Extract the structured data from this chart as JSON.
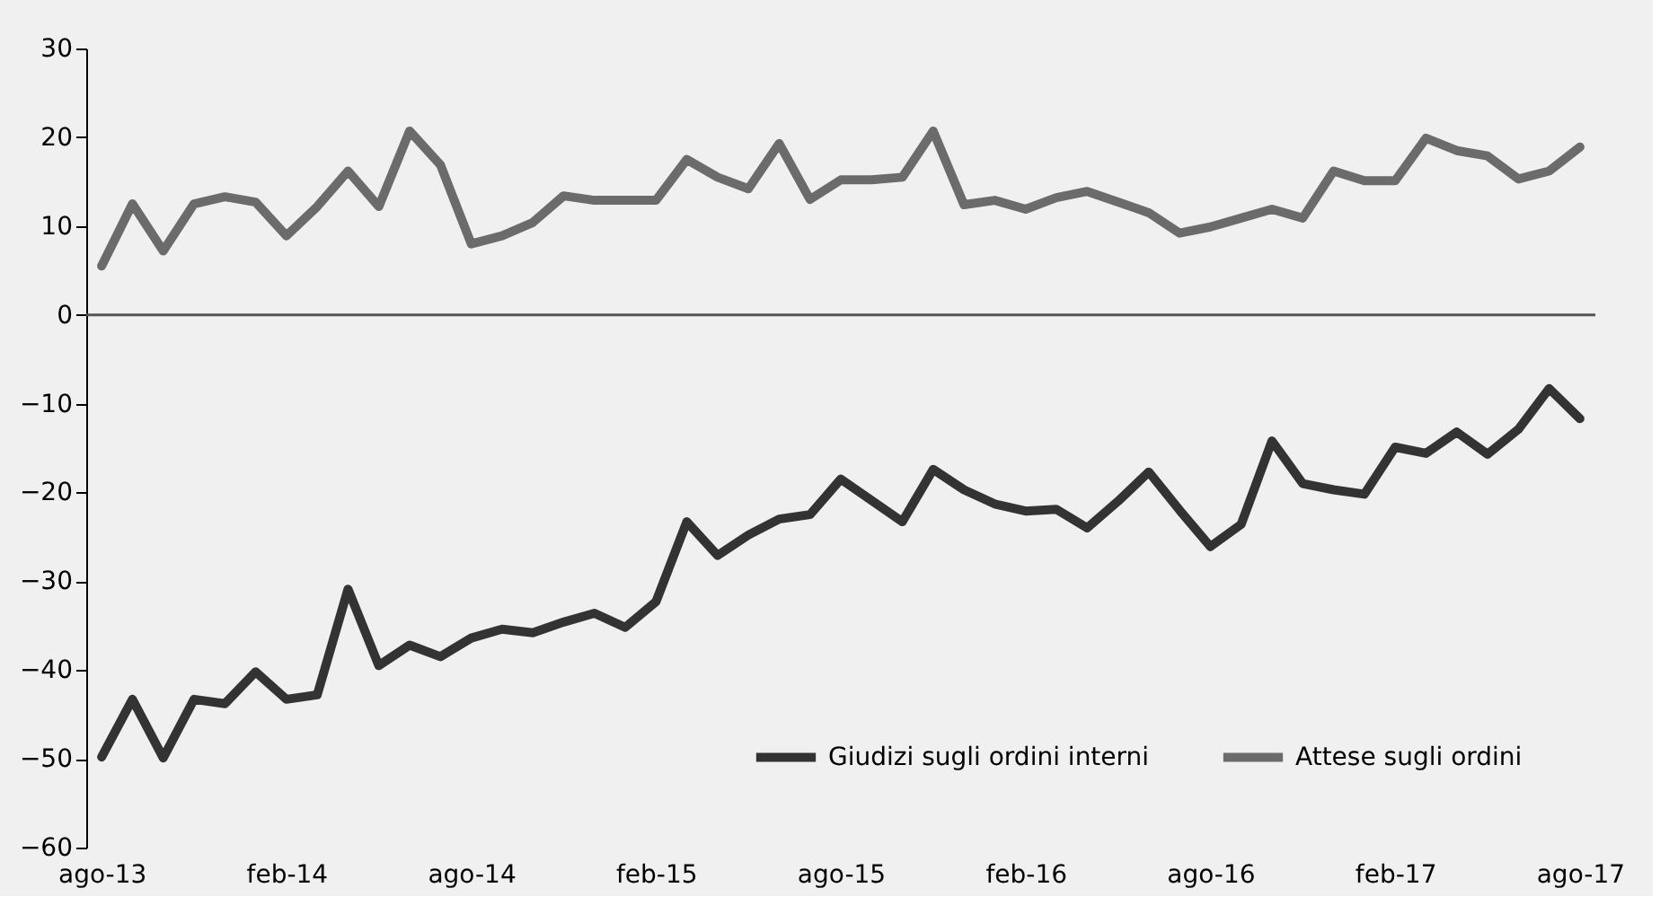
{
  "chart_data": {
    "type": "line",
    "categories": [
      "ago-13",
      null,
      null,
      null,
      null,
      null,
      "feb-14",
      null,
      null,
      null,
      null,
      null,
      "ago-14",
      null,
      null,
      null,
      null,
      null,
      "feb-15",
      null,
      null,
      null,
      null,
      null,
      "ago-15",
      null,
      null,
      null,
      null,
      null,
      "feb-16",
      null,
      null,
      null,
      null,
      null,
      "ago-16",
      null,
      null,
      null,
      null,
      null,
      "feb-17",
      null,
      null,
      null,
      null,
      null,
      "ago-17"
    ],
    "series": [
      {
        "name": "Giudizi sugli ordini interni",
        "color": "#333333",
        "values": [
          -49.8,
          -43.3,
          -49.9,
          -43.3,
          -43.8,
          -40.2,
          -43.3,
          -42.8,
          -30.9,
          -39.5,
          -37.2,
          -38.5,
          -36.4,
          -35.4,
          -35.8,
          -34.6,
          -33.6,
          -35.2,
          -32.3,
          -23.3,
          -27.1,
          -24.8,
          -23.0,
          -22.5,
          -18.5,
          -20.9,
          -23.3,
          -17.4,
          -19.7,
          -21.3,
          -22.1,
          -21.9,
          -24.0,
          -21.0,
          -17.7,
          -22.0,
          -26.1,
          -23.6,
          -14.2,
          -19.0,
          -19.7,
          -20.2,
          -14.9,
          -15.6,
          -13.2,
          -15.7,
          -12.9,
          -8.3,
          -11.7
        ]
      },
      {
        "name": "Attese sugli ordini",
        "color": "#6b6b6b",
        "values": [
          5.5,
          12.5,
          7.2,
          12.5,
          13.3,
          12.7,
          8.9,
          12.2,
          16.2,
          12.2,
          20.7,
          16.9,
          8.0,
          8.9,
          10.4,
          13.4,
          12.9,
          12.9,
          12.9,
          17.5,
          15.5,
          14.2,
          19.3,
          13.0,
          15.2,
          15.2,
          15.5,
          20.7,
          12.4,
          12.9,
          11.9,
          13.2,
          13.9,
          12.7,
          11.5,
          9.2,
          9.9,
          10.9,
          11.9,
          10.9,
          16.2,
          15.1,
          15.1,
          19.9,
          18.5,
          17.9,
          15.3,
          16.2,
          18.9
        ]
      }
    ],
    "ylim": [
      -60,
      30
    ],
    "yticks": [
      -60,
      -50,
      -40,
      -30,
      -20,
      -10,
      0,
      10,
      20,
      30
    ],
    "ref_lines": [
      {
        "axis": "y",
        "value": 0,
        "color": "#555555"
      }
    ],
    "grid": false,
    "legend": "bottom right",
    "marker": "none",
    "line_style": "solid"
  }
}
